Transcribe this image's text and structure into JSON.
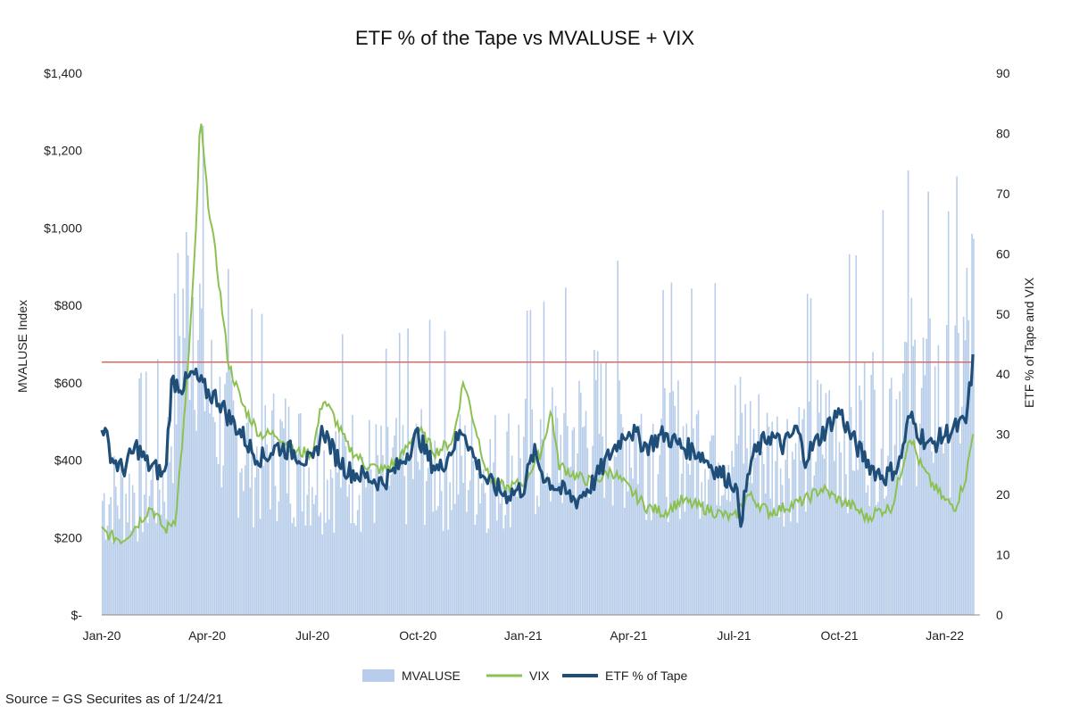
{
  "chart_data": {
    "type": "bar+line",
    "title": "ETF % of the Tape vs MVALUSE + VIX",
    "ylabel_left": "MVALUSE Index",
    "ylabel_right": "ETF % of Tape and VIX",
    "left_axis": {
      "min": 0,
      "max": 1400,
      "ticks": [
        0,
        200,
        400,
        600,
        800,
        1000,
        1200,
        1400
      ],
      "tick_labels": [
        "$-",
        "$200",
        "$400",
        "$600",
        "$800",
        "$1,000",
        "$1,200",
        "$1,400"
      ]
    },
    "right_axis": {
      "min": 0,
      "max": 90,
      "ticks": [
        0,
        10,
        20,
        30,
        40,
        50,
        60,
        70,
        80,
        90
      ],
      "tick_labels": [
        "0",
        "10",
        "20",
        "30",
        "40",
        "50",
        "60",
        "70",
        "80",
        "90"
      ]
    },
    "x_range_months": [
      0,
      25
    ],
    "x_ticks": [
      {
        "label": "Jan-20",
        "m": 0
      },
      {
        "label": "Apr-20",
        "m": 3
      },
      {
        "label": "Jul-20",
        "m": 6
      },
      {
        "label": "Oct-20",
        "m": 9
      },
      {
        "label": "Jan-21",
        "m": 12
      },
      {
        "label": "Apr-21",
        "m": 15
      },
      {
        "label": "Jul-21",
        "m": 18
      },
      {
        "label": "Oct-21",
        "m": 21
      },
      {
        "label": "Jan-22",
        "m": 24
      }
    ],
    "reference_line": {
      "value": 42,
      "axis": "right",
      "color": "#e06666"
    },
    "series": [
      {
        "name": "MVALUSE",
        "kind": "bar",
        "axis": "left",
        "color": "#b7cde9",
        "keypoints": [
          [
            0,
            360
          ],
          [
            1,
            390
          ],
          [
            1.8,
            420
          ],
          [
            2.2,
            900
          ],
          [
            2.6,
            1050
          ],
          [
            3.0,
            680
          ],
          [
            3.6,
            560
          ],
          [
            4.5,
            480
          ],
          [
            5,
            520
          ],
          [
            6,
            460
          ],
          [
            7,
            470
          ],
          [
            8,
            430
          ],
          [
            9,
            480
          ],
          [
            10,
            460
          ],
          [
            11,
            450
          ],
          [
            12,
            500
          ],
          [
            13,
            520
          ],
          [
            14,
            600
          ],
          [
            15,
            560
          ],
          [
            16,
            530
          ],
          [
            17,
            540
          ],
          [
            18,
            560
          ],
          [
            19,
            500
          ],
          [
            20,
            520
          ],
          [
            21,
            570
          ],
          [
            22,
            620
          ],
          [
            23,
            740
          ],
          [
            23.6,
            680
          ],
          [
            24,
            650
          ],
          [
            24.4,
            720
          ],
          [
            24.8,
            960
          ]
        ]
      },
      {
        "name": "VIX",
        "kind": "line",
        "axis": "right",
        "color": "#8cc152",
        "keypoints": [
          [
            0,
            14
          ],
          [
            0.3,
            13
          ],
          [
            0.6,
            12.5
          ],
          [
            1.0,
            15
          ],
          [
            1.4,
            18
          ],
          [
            1.8,
            14
          ],
          [
            2.1,
            16
          ],
          [
            2.4,
            36
          ],
          [
            2.7,
            65
          ],
          [
            2.8,
            83
          ],
          [
            3.0,
            70
          ],
          [
            3.3,
            57
          ],
          [
            3.6,
            42
          ],
          [
            4,
            35
          ],
          [
            4.5,
            30
          ],
          [
            5,
            30
          ],
          [
            5.5,
            27
          ],
          [
            6,
            27
          ],
          [
            6.3,
            36
          ],
          [
            6.6,
            33
          ],
          [
            7,
            28
          ],
          [
            7.5,
            25
          ],
          [
            8,
            24
          ],
          [
            8.5,
            26
          ],
          [
            9,
            31
          ],
          [
            9.5,
            27
          ],
          [
            10,
            29
          ],
          [
            10.3,
            39
          ],
          [
            10.6,
            32
          ],
          [
            11,
            23
          ],
          [
            11.5,
            21
          ],
          [
            12,
            22
          ],
          [
            12.5,
            27
          ],
          [
            12.8,
            34
          ],
          [
            13,
            25
          ],
          [
            13.5,
            23
          ],
          [
            14,
            22
          ],
          [
            14.5,
            24
          ],
          [
            15,
            21
          ],
          [
            15.5,
            18
          ],
          [
            16,
            17
          ],
          [
            16.5,
            19
          ],
          [
            17,
            18
          ],
          [
            17.5,
            17
          ],
          [
            18,
            16
          ],
          [
            18.4,
            20
          ],
          [
            18.8,
            18
          ],
          [
            19,
            17
          ],
          [
            19.5,
            18
          ],
          [
            20,
            19
          ],
          [
            20.5,
            21
          ],
          [
            21,
            19
          ],
          [
            21.4,
            18
          ],
          [
            21.8,
            16
          ],
          [
            22,
            17
          ],
          [
            22.5,
            18
          ],
          [
            22.8,
            25
          ],
          [
            23,
            30
          ],
          [
            23.3,
            25
          ],
          [
            23.6,
            22
          ],
          [
            24,
            19
          ],
          [
            24.3,
            18
          ],
          [
            24.6,
            23
          ],
          [
            24.8,
            30
          ]
        ]
      },
      {
        "name": "ETF % of Tape",
        "kind": "line",
        "axis": "right",
        "color": "#1f4e79",
        "keypoints": [
          [
            0,
            32
          ],
          [
            0.3,
            26
          ],
          [
            0.6,
            24
          ],
          [
            1,
            28
          ],
          [
            1.3,
            25
          ],
          [
            1.6,
            24
          ],
          [
            1.8,
            23
          ],
          [
            2.0,
            39
          ],
          [
            2.3,
            38
          ],
          [
            2.6,
            40
          ],
          [
            3,
            37
          ],
          [
            3.3,
            36
          ],
          [
            3.6,
            33
          ],
          [
            4,
            30
          ],
          [
            4.3,
            27
          ],
          [
            4.6,
            26
          ],
          [
            5,
            28
          ],
          [
            5.5,
            27
          ],
          [
            6,
            25
          ],
          [
            6.3,
            31
          ],
          [
            6.6,
            27
          ],
          [
            7,
            24
          ],
          [
            7.5,
            23
          ],
          [
            8,
            22
          ],
          [
            8.5,
            25
          ],
          [
            9,
            30
          ],
          [
            9.3,
            26
          ],
          [
            9.6,
            24
          ],
          [
            10,
            28
          ],
          [
            10.3,
            31
          ],
          [
            10.6,
            26
          ],
          [
            11,
            22
          ],
          [
            11.5,
            20
          ],
          [
            12,
            21
          ],
          [
            12.3,
            27
          ],
          [
            12.6,
            23
          ],
          [
            13,
            21
          ],
          [
            13.5,
            19
          ],
          [
            14,
            22
          ],
          [
            14.5,
            27
          ],
          [
            15,
            31
          ],
          [
            15.5,
            28
          ],
          [
            16,
            30
          ],
          [
            16.5,
            28
          ],
          [
            17,
            27
          ],
          [
            17.5,
            24
          ],
          [
            18,
            22
          ],
          [
            18.2,
            16
          ],
          [
            18.5,
            26
          ],
          [
            19,
            30
          ],
          [
            19.4,
            28
          ],
          [
            19.8,
            31
          ],
          [
            20,
            26
          ],
          [
            20.5,
            30
          ],
          [
            21,
            34
          ],
          [
            21.3,
            30
          ],
          [
            21.6,
            27
          ],
          [
            22,
            24
          ],
          [
            22.3,
            23
          ],
          [
            22.7,
            25
          ],
          [
            23,
            33
          ],
          [
            23.3,
            30
          ],
          [
            23.6,
            28
          ],
          [
            24,
            30
          ],
          [
            24.3,
            31
          ],
          [
            24.6,
            32
          ],
          [
            24.8,
            42
          ]
        ]
      }
    ],
    "legend_position": "bottom-center"
  },
  "source_note": "Source = GS Securites as of 1/24/21"
}
